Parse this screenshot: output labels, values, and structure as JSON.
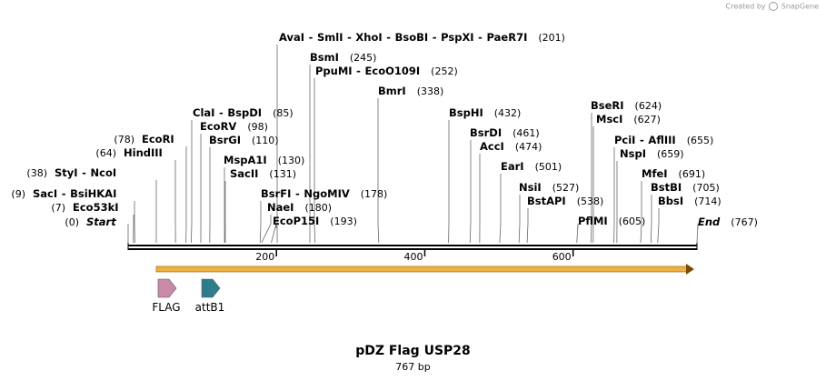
{
  "credit": {
    "prefix": "Created by",
    "brand": "SnapGene"
  },
  "title": "pDZ Flag USP28",
  "subtitle": "767 bp",
  "sequence_length": 767,
  "ticks": [
    200,
    400,
    600
  ],
  "sites": [
    {
      "name": "Start",
      "pos": 0,
      "italic": true
    },
    {
      "name": "Eco53kI",
      "pos": 7
    },
    {
      "name": "SacI - BsiHKAI",
      "pos": 9
    },
    {
      "name": "StyI - NcoI",
      "pos": 38
    },
    {
      "name": "HindIII",
      "pos": 64
    },
    {
      "name": "EcoRI",
      "pos": 78
    },
    {
      "name": "ClaI - BspDI",
      "pos": 85
    },
    {
      "name": "EcoRV",
      "pos": 98
    },
    {
      "name": "BsrGI",
      "pos": 110
    },
    {
      "name": "MspA1I",
      "pos": 130
    },
    {
      "name": "SacII",
      "pos": 131
    },
    {
      "name": "BsrFI - NgoMIV",
      "pos": 178
    },
    {
      "name": "NaeI",
      "pos": 180
    },
    {
      "name": "EcoP15I",
      "pos": 193
    },
    {
      "name": "AvaI - SmlI - XhoI - BsoBI - PspXI - PaeR7I",
      "pos": 201
    },
    {
      "name": "BsmI",
      "pos": 245
    },
    {
      "name": "PpuMI - EcoO109I",
      "pos": 252
    },
    {
      "name": "BmrI",
      "pos": 338
    },
    {
      "name": "BspHI",
      "pos": 432
    },
    {
      "name": "BsrDI",
      "pos": 461
    },
    {
      "name": "AccI",
      "pos": 474
    },
    {
      "name": "EarI",
      "pos": 501
    },
    {
      "name": "NsiI",
      "pos": 527
    },
    {
      "name": "BstAPI",
      "pos": 538
    },
    {
      "name": "PflMI",
      "pos": 605
    },
    {
      "name": "BseRI",
      "pos": 624
    },
    {
      "name": "MscI",
      "pos": 627
    },
    {
      "name": "PciI - AflIII",
      "pos": 655
    },
    {
      "name": "NspI",
      "pos": 659
    },
    {
      "name": "MfeI",
      "pos": 691
    },
    {
      "name": "BstBI",
      "pos": 705
    },
    {
      "name": "BbsI",
      "pos": 714
    },
    {
      "name": "End",
      "pos": 767,
      "italic": true
    }
  ],
  "features": [
    {
      "name": "FLAG",
      "color": "#c98aa8"
    },
    {
      "name": "attB1",
      "color": "#2e7d8c"
    }
  ],
  "orf": {
    "color": "#f0b040"
  }
}
